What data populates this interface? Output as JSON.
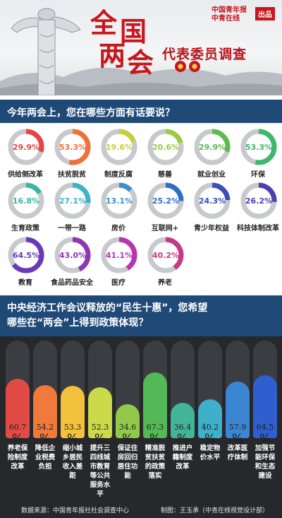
{
  "header": {
    "title_chars": [
      "全",
      "国",
      "两",
      "会"
    ],
    "subtitle": "代表委员调查",
    "brand_line1": "中国青年报",
    "brand_line2": "中青在线",
    "brand_badge": "出品"
  },
  "colors": {
    "banner": "#1f4a78",
    "title_red": "#c8161d",
    "ring_track": "#c7c9cc",
    "bar_bg": "#26282b"
  },
  "section1": {
    "question": "今年两会上，您在哪些方面有话要说？"
  },
  "section2": {
    "question_line1": "中央经济工作会议释放的“民生十惠”，您希望",
    "question_line2": "哪些在“两会”上得到政策体现？"
  },
  "chart_data": [
    {
      "type": "pie",
      "title": "今年两会上，您在哪些方面有话要说？",
      "unit": "%",
      "items": [
        {
          "label": "供给侧改革",
          "value": 29.9,
          "display": "29.9%",
          "color": "#e64545"
        },
        {
          "label": "扶贫脱贫",
          "value": 53.3,
          "display": "53.3%",
          "color": "#f0703a"
        },
        {
          "label": "制度反腐",
          "value": 19.6,
          "display": "19.6%",
          "color": "#c9cc3c"
        },
        {
          "label": "慈善",
          "value": 20.6,
          "display": "20.6%",
          "color": "#9acb45"
        },
        {
          "label": "就业创业",
          "value": 29.9,
          "display": "29.9%",
          "color": "#5cba4e"
        },
        {
          "label": "环保",
          "value": 53.3,
          "display": "53.3%",
          "color": "#3fb76d"
        },
        {
          "label": "生育政策",
          "value": 16.8,
          "display": "16.8%",
          "color": "#3cb4a4"
        },
        {
          "label": "一带一路",
          "value": 27.1,
          "display": "27.1%",
          "color": "#3fb3c7"
        },
        {
          "label": "房价",
          "value": 13.1,
          "display": "13.1%",
          "color": "#3d8ed1"
        },
        {
          "label": "互联网+",
          "value": 25.2,
          "display": "25.2%",
          "color": "#2f6ec4"
        },
        {
          "label": "青少年权益",
          "value": 24.3,
          "display": "24.3%",
          "color": "#3a4fb8"
        },
        {
          "label": "科技体制改革",
          "value": 26.2,
          "display": "26.2%",
          "color": "#4d3fb0"
        },
        {
          "label": "教育",
          "value": 64.5,
          "display": "64.5%",
          "color": "#6a38b8"
        },
        {
          "label": "食品药品安全",
          "value": 43.0,
          "display": "43.0%",
          "color": "#8e37b5"
        },
        {
          "label": "医疗",
          "value": 41.1,
          "display": "41.1%",
          "color": "#b536b0"
        },
        {
          "label": "养老",
          "value": 40.2,
          "display": "40.2%",
          "color": "#c43a86"
        }
      ]
    },
    {
      "type": "bar",
      "title": "中央经济工作会议释放的“民生十惠”，您希望哪些在“两会”上得到政策体现？",
      "unit": "%",
      "ylim": [
        0,
        100
      ],
      "items": [
        {
          "label": "养老保险制度改革",
          "label_lines": [
            "养老保",
            "险制度",
            "改革"
          ],
          "value": 60.7,
          "display": "60.7",
          "color": "#e24b45"
        },
        {
          "label": "降低企业税费负担",
          "label_lines": [
            "降低企",
            "业税费",
            "负担"
          ],
          "value": 54.2,
          "display": "54.2",
          "color": "#ef7a3c"
        },
        {
          "label": "缩小城乡居民收入差距",
          "label_lines": [
            "缩小城",
            "乡居民",
            "收入差距"
          ],
          "value": 53.3,
          "display": "53.3",
          "color": "#f3c23c"
        },
        {
          "label": "提升三四线城市教育等公共服务水平",
          "label_lines": [
            "提升三",
            "四线城",
            "市教育",
            "等公共",
            "服务水平"
          ],
          "value": 52.3,
          "display": "52.3",
          "color": "#cbd94a"
        },
        {
          "label": "保证住房回归居住功能",
          "label_lines": [
            "保证住",
            "房回归",
            "居住功能"
          ],
          "value": 34.6,
          "display": "34.6",
          "color": "#93c94a"
        },
        {
          "label": "精准脱贫扶贫的政策落实",
          "label_lines": [
            "精准脱",
            "贫扶贫",
            "的政策",
            "落实"
          ],
          "value": 67.3,
          "display": "67.3",
          "color": "#53b956"
        },
        {
          "label": "推进户籍制度改革",
          "label_lines": [
            "推进户",
            "籍制度",
            "改革"
          ],
          "value": 36.4,
          "display": "36.4",
          "color": "#43b497"
        },
        {
          "label": "稳定物价水平",
          "label_lines": [
            "稳定物",
            "价水平"
          ],
          "value": 40.2,
          "display": "40.2",
          "color": "#3fb0c9"
        },
        {
          "label": "改革医疗体制",
          "label_lines": [
            "改革医",
            "疗体制"
          ],
          "value": 57.9,
          "display": "57.9",
          "color": "#3b86d2"
        },
        {
          "label": "加强节能环保和生态建设",
          "label_lines": [
            "加强节",
            "能环保",
            "和生态",
            "建设"
          ],
          "value": 64.5,
          "display": "64.5",
          "color": "#2f5fcf"
        }
      ]
    }
  ],
  "footer": {
    "source": "数据来源：中国青年报社社会调查中心",
    "maker": "制图：王玉承（中青在线视觉设计部）"
  }
}
